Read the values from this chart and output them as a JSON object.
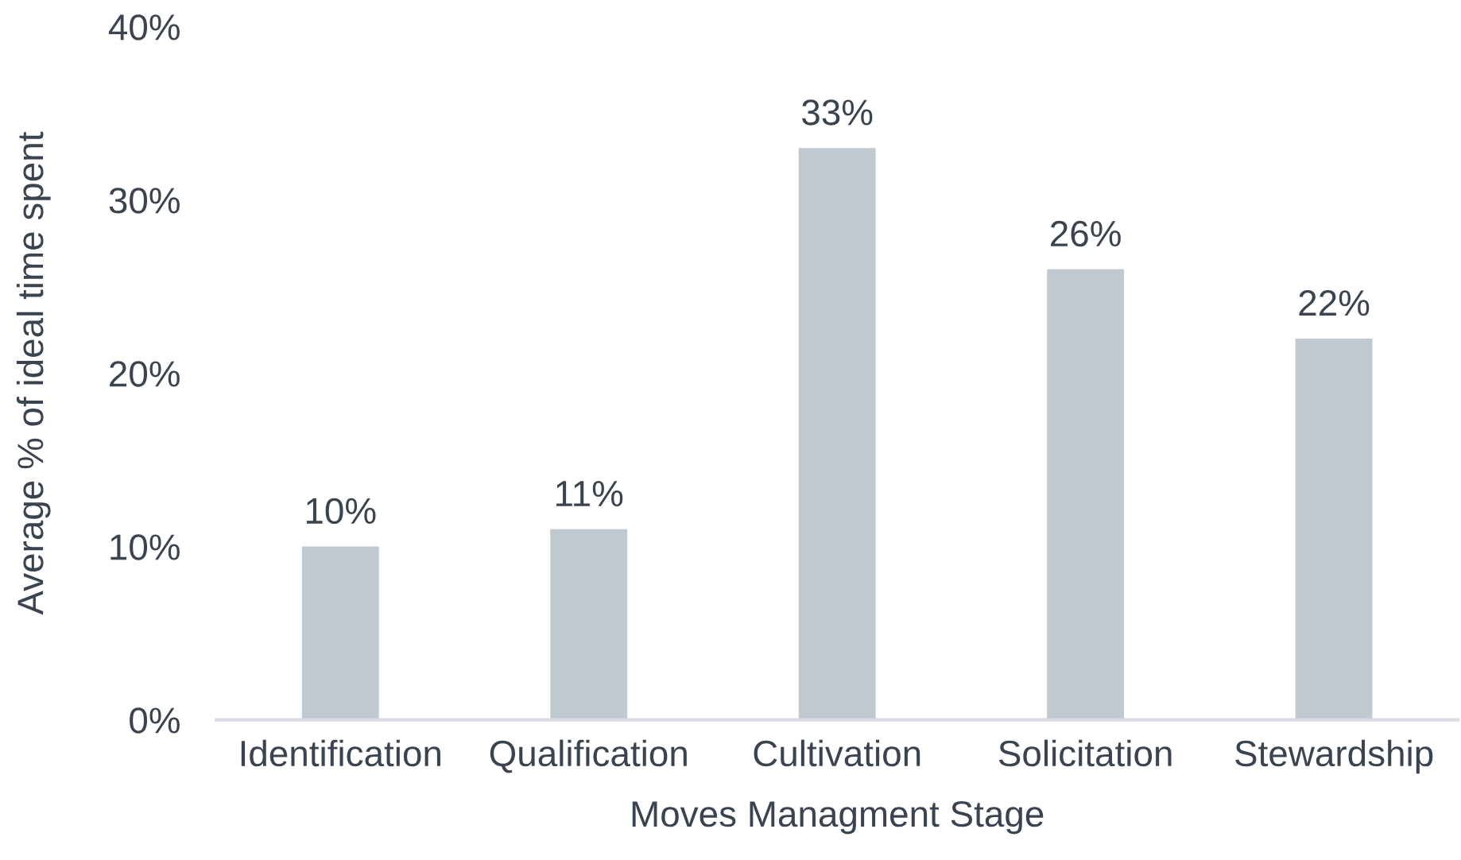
{
  "chart_data": {
    "type": "bar",
    "xlabel": "Moves Managment Stage",
    "ylabel": "Average % of ideal time spent",
    "categories": [
      "Identification",
      "Qualification",
      "Cultivation",
      "Solicitation",
      "Stewardship"
    ],
    "values": [
      10,
      11,
      33,
      26,
      22
    ],
    "color": "#bfc9cf",
    "value_labels": [
      "10%",
      "11%",
      "33%",
      "26%",
      "22%"
    ],
    "ylim": [
      0,
      40
    ],
    "yticks": [
      {
        "value": 0,
        "label": "0%"
      },
      {
        "value": 10,
        "label": "10%"
      },
      {
        "value": 20,
        "label": "20%"
      },
      {
        "value": 30,
        "label": "30%"
      },
      {
        "value": 40,
        "label": "40%"
      }
    ]
  }
}
